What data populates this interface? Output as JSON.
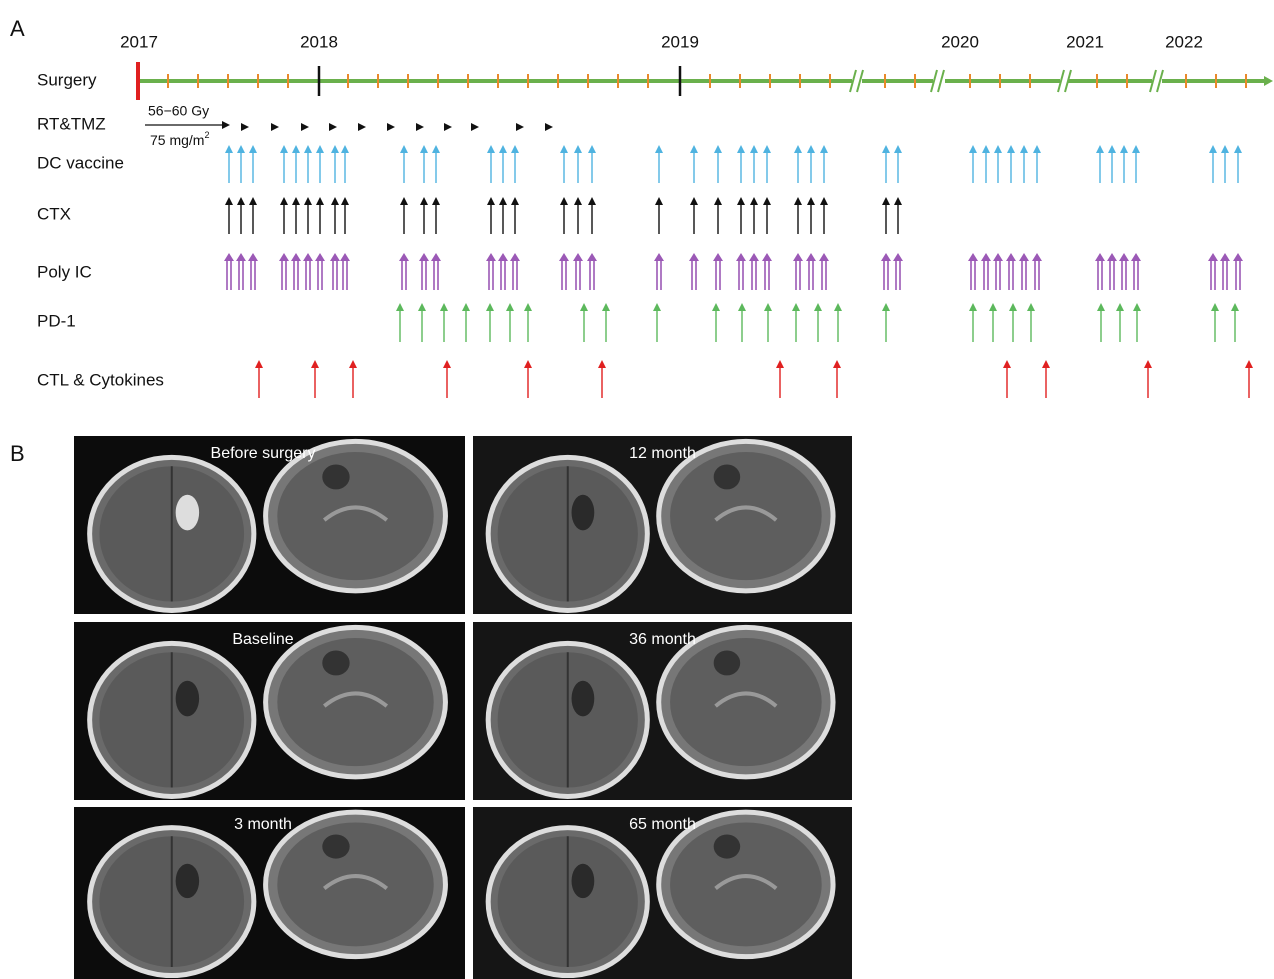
{
  "panel_a": {
    "label": "A",
    "years": [
      "2017",
      "2018",
      "2019",
      "2020",
      "2021",
      "2022"
    ],
    "rows": [
      "Surgery",
      "RT&TMZ",
      "DC vaccine",
      "CTX",
      "Poly IC",
      "PD-1",
      "CTL & Cytokines"
    ],
    "rt_dose": "56−60 Gy",
    "tmz_dose": "75 mg/m",
    "tmz_dose_exponent": "2"
  },
  "panel_b": {
    "label": "B",
    "images": [
      "Before surgery",
      "12 month",
      "Baseline",
      "36 month",
      "3 month",
      "65 month"
    ]
  }
}
